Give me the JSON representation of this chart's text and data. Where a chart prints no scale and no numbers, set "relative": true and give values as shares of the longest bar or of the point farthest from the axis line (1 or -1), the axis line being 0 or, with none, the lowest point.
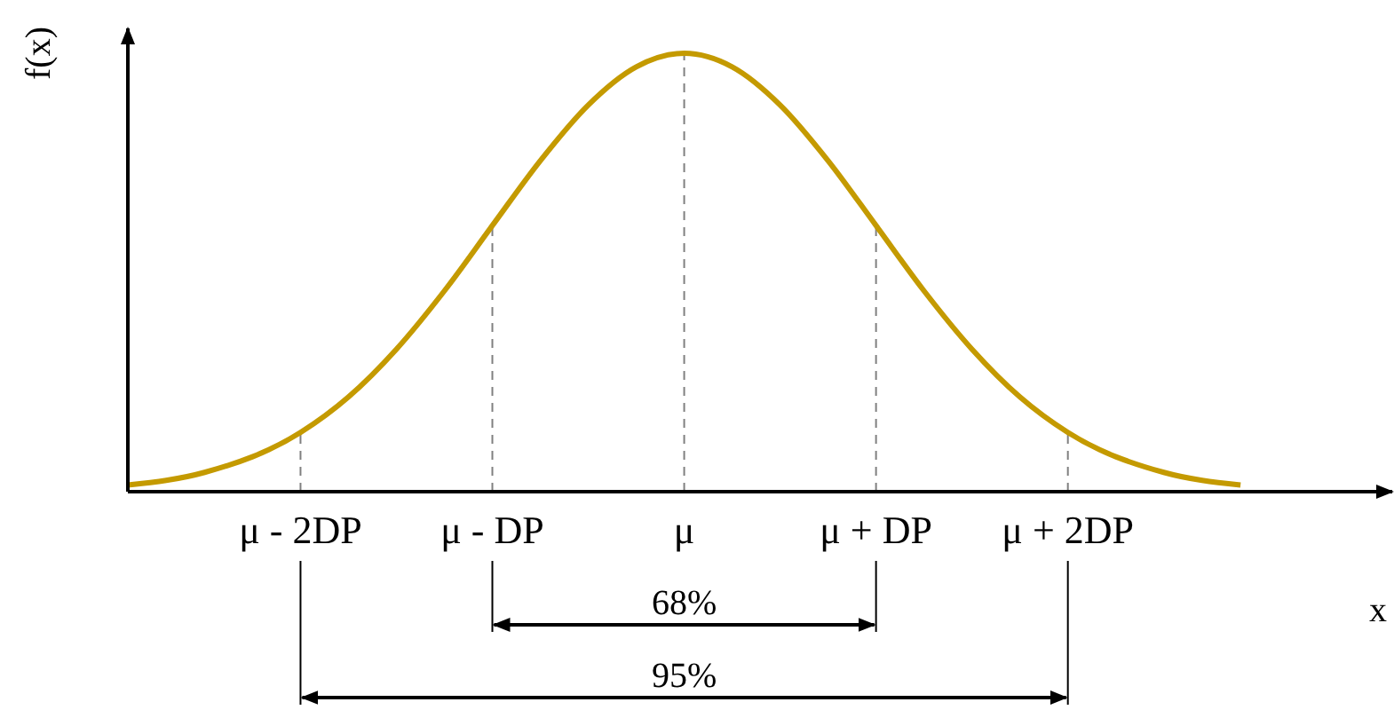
{
  "chart_data": {
    "type": "line",
    "xlabel": "x",
    "ylabel": "f(x)",
    "relative": true,
    "x": [
      -2.9,
      -2.5,
      -2,
      -1.75,
      -1.5,
      -1.25,
      -1,
      -0.75,
      -0.5,
      -0.25,
      0,
      0.25,
      0.5,
      0.75,
      1,
      1.25,
      1.5,
      1.75,
      2,
      2.5,
      2.9
    ],
    "series": [
      {
        "color": "#c49a00",
        "values": [
          0.015,
          0.044,
          0.135,
          0.216,
          0.325,
          0.458,
          0.607,
          0.755,
          0.882,
          0.969,
          1,
          0.969,
          0.882,
          0.755,
          0.607,
          0.458,
          0.325,
          0.216,
          0.135,
          0.044,
          0.015
        ]
      }
    ],
    "xlim": [
      -2.9,
      3.7
    ],
    "xticks": [
      {
        "value": -2,
        "label": "μ - 2DP"
      },
      {
        "value": -1,
        "label": "μ - DP"
      },
      {
        "value": 0,
        "label": "μ"
      },
      {
        "value": 1,
        "label": "μ + DP"
      },
      {
        "value": 2,
        "label": "μ + 2DP"
      }
    ],
    "ref_lines": [
      {
        "axis": "x",
        "value": -2,
        "line_style": "dashed",
        "color": "#808080"
      },
      {
        "axis": "x",
        "value": -1,
        "line_style": "dashed",
        "color": "#808080"
      },
      {
        "axis": "x",
        "value": 0,
        "line_style": "dashed",
        "color": "#808080"
      },
      {
        "axis": "x",
        "value": 1,
        "line_style": "dashed",
        "color": "#808080"
      },
      {
        "axis": "x",
        "value": 2,
        "line_style": "dashed",
        "color": "#808080"
      }
    ],
    "annotations": [
      "68%",
      "95%"
    ],
    "marker": "none",
    "line_style": "solid"
  }
}
